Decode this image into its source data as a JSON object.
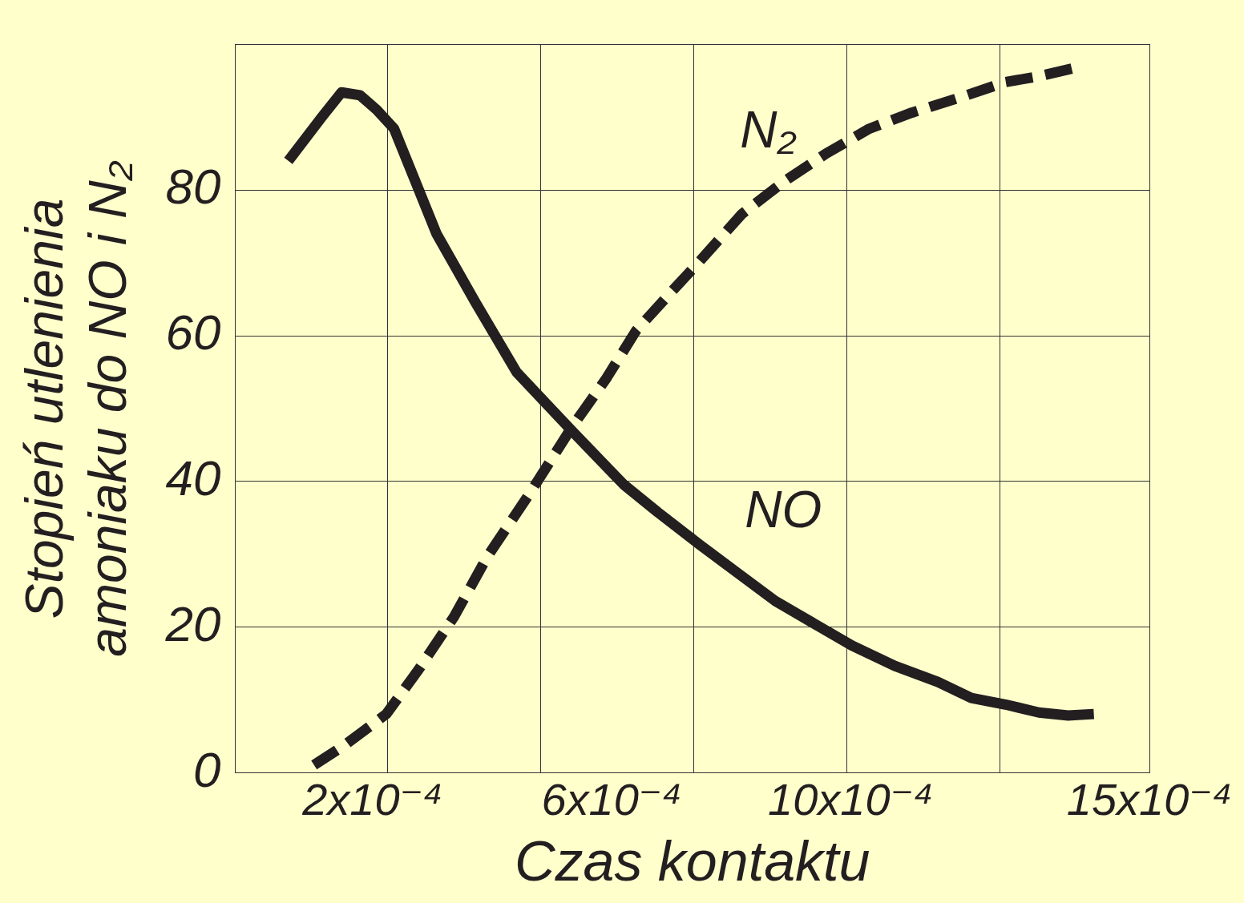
{
  "chart_data": {
    "type": "line",
    "xlabel": "Czas kontaktu",
    "ylabel": [
      "Stopień utlenienia",
      "amoniaku do NO i N₂"
    ],
    "xlim": [
      -3e-05,
      0.0015
    ],
    "xticks": [
      {
        "value": 0.0002,
        "label": "2x10⁻⁴"
      },
      {
        "value": 0.0006,
        "label": "6x10⁻⁴"
      },
      {
        "value": 0.001,
        "label": "10x10⁻⁴"
      },
      {
        "value": 0.0015,
        "label": "15x10⁻⁴"
      },
      {
        "value": 0.000225,
        "label": null
      },
      {
        "value": 0.000481,
        "label": null
      },
      {
        "value": 0.000738,
        "label": null
      },
      {
        "value": 0.000994,
        "label": null
      },
      {
        "value": 0.00125,
        "label": null
      }
    ],
    "ylim": [
      0,
      100
    ],
    "yticks": [
      0,
      20,
      40,
      60,
      80
    ],
    "grid": true,
    "marker": "none",
    "series": [
      {
        "name": "NO",
        "line_style": "solid",
        "color": "#231f20",
        "x": [
          5.9e-05,
          0.000115,
          0.000148,
          0.000179,
          0.000207,
          0.000236,
          0.000307,
          0.000372,
          0.000441,
          0.000533,
          0.00062,
          0.000677,
          0.000748,
          0.00081,
          0.000874,
          0.001002,
          0.001074,
          0.001146,
          0.001202,
          0.001259,
          0.001315,
          0.001364,
          0.001407
        ],
        "values": [
          84,
          90,
          93.4,
          93,
          91,
          88.4,
          74,
          64.6,
          55,
          47,
          39.6,
          35.8,
          31.3,
          27.5,
          23.6,
          17.5,
          14.7,
          12.5,
          10.3,
          9.4,
          8.3,
          7.9,
          8.1
        ]
      },
      {
        "name": "N₂",
        "line_style": "dashed",
        "color": "#231f20",
        "x": [
          0.000102,
          0.000151,
          0.000223,
          0.000277,
          0.000336,
          0.000392,
          0.000464,
          0.000533,
          0.00059,
          0.000641,
          0.000702,
          0.000746,
          0.000818,
          0.000889,
          0.000959,
          0.001031,
          0.001102,
          0.001187,
          0.001259,
          0.001315,
          0.001372
        ],
        "values": [
          1.1,
          3.7,
          8.1,
          14.2,
          21.4,
          29.7,
          38.5,
          47.4,
          54,
          60.7,
          66.2,
          70.1,
          76.7,
          81.2,
          85,
          88.4,
          90.6,
          92.8,
          94.8,
          95.6,
          96.7
        ]
      }
    ]
  }
}
